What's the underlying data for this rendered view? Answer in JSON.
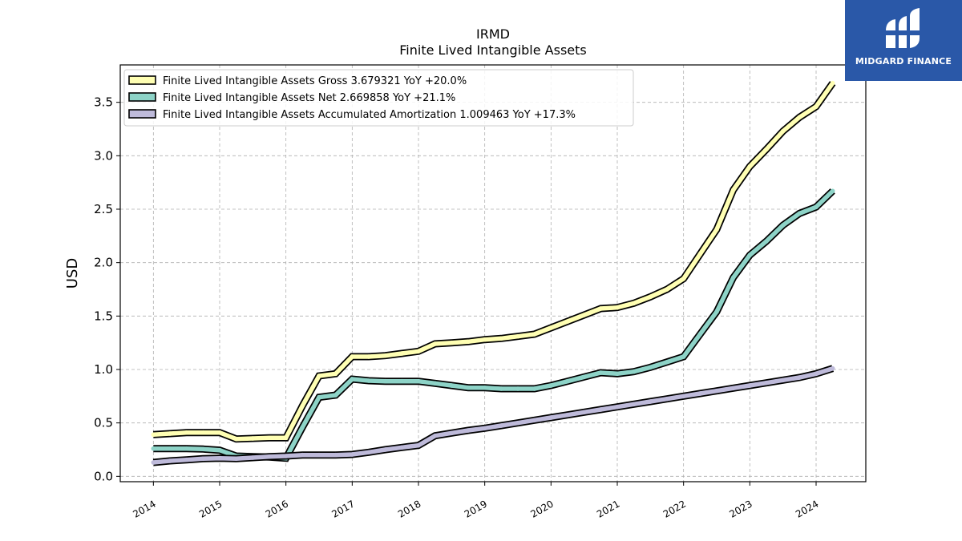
{
  "brand": {
    "name": "MIDGARD FINANCE",
    "icon": "midgard-logo-icon",
    "background": "#2a58a8"
  },
  "chart_data": {
    "type": "line",
    "title": "IRMD",
    "subtitle": "Finite Lived Intangible Assets",
    "xlabel": "",
    "ylabel": "USD",
    "xlim": [
      2013.5,
      2024.75
    ],
    "ylim": [
      -0.05,
      3.85
    ],
    "x_ticks": [
      2014,
      2015,
      2016,
      2017,
      2018,
      2019,
      2020,
      2021,
      2022,
      2023,
      2024
    ],
    "y_ticks": [
      0.0,
      0.5,
      1.0,
      1.5,
      2.0,
      2.5,
      3.0,
      3.5
    ],
    "y_tick_labels": [
      "0.0",
      "0.5",
      "1.0",
      "1.5",
      "2.0",
      "2.5",
      "3.0",
      "3.5"
    ],
    "grid": true,
    "legend_position": "top-left",
    "series": [
      {
        "name": "Finite Lived Intangible Assets Gross  3.679321 YoY +20.0%",
        "color": "#ffffb3",
        "x": [
          2014.0,
          2014.25,
          2014.5,
          2014.75,
          2015.0,
          2015.25,
          2015.5,
          2015.75,
          2016.0,
          2016.25,
          2016.5,
          2016.75,
          2017.0,
          2017.25,
          2017.5,
          2017.75,
          2018.0,
          2018.25,
          2018.5,
          2018.75,
          2019.0,
          2019.25,
          2019.5,
          2019.75,
          2020.0,
          2020.25,
          2020.5,
          2020.75,
          2021.0,
          2021.25,
          2021.5,
          2021.75,
          2022.0,
          2022.25,
          2022.5,
          2022.75,
          2023.0,
          2023.25,
          2023.5,
          2023.75,
          2024.0,
          2024.25
        ],
        "values": [
          0.39,
          0.4,
          0.41,
          0.41,
          0.41,
          0.35,
          0.355,
          0.36,
          0.36,
          0.66,
          0.94,
          0.96,
          1.12,
          1.12,
          1.13,
          1.15,
          1.17,
          1.24,
          1.25,
          1.26,
          1.28,
          1.29,
          1.31,
          1.33,
          1.39,
          1.45,
          1.51,
          1.57,
          1.58,
          1.62,
          1.68,
          1.75,
          1.85,
          2.08,
          2.31,
          2.68,
          2.9,
          3.06,
          3.23,
          3.36,
          3.46,
          3.68
        ]
      },
      {
        "name": "Finite Lived Intangible Assets Net  2.669858 YoY +21.1%",
        "color": "#8dd3c7",
        "x": [
          2014.0,
          2014.25,
          2014.5,
          2014.75,
          2015.0,
          2015.25,
          2015.5,
          2015.75,
          2016.0,
          2016.25,
          2016.5,
          2016.75,
          2017.0,
          2017.25,
          2017.5,
          2017.75,
          2018.0,
          2018.25,
          2018.5,
          2018.75,
          2019.0,
          2019.25,
          2019.5,
          2019.75,
          2020.0,
          2020.25,
          2020.5,
          2020.75,
          2021.0,
          2021.25,
          2021.5,
          2021.75,
          2022.0,
          2022.25,
          2022.5,
          2022.75,
          2023.0,
          2023.25,
          2023.5,
          2023.75,
          2024.0,
          2024.25
        ],
        "values": [
          0.26,
          0.26,
          0.26,
          0.255,
          0.245,
          0.19,
          0.185,
          0.18,
          0.17,
          0.46,
          0.74,
          0.76,
          0.91,
          0.895,
          0.89,
          0.89,
          0.89,
          0.87,
          0.85,
          0.83,
          0.83,
          0.82,
          0.82,
          0.82,
          0.85,
          0.89,
          0.93,
          0.97,
          0.96,
          0.98,
          1.02,
          1.07,
          1.12,
          1.33,
          1.54,
          1.86,
          2.07,
          2.2,
          2.35,
          2.46,
          2.52,
          2.67
        ]
      },
      {
        "name": "Finite Lived Intangible Assets Accumulated Amortization  1.009463 YoY +17.3%",
        "color": "#bebada",
        "x": [
          2014.0,
          2014.25,
          2014.5,
          2014.75,
          2015.0,
          2015.25,
          2015.5,
          2015.75,
          2016.0,
          2016.25,
          2016.5,
          2016.75,
          2017.0,
          2017.25,
          2017.5,
          2017.75,
          2018.0,
          2018.25,
          2018.5,
          2018.75,
          2019.0,
          2019.25,
          2019.5,
          2019.75,
          2020.0,
          2020.25,
          2020.5,
          2020.75,
          2021.0,
          2021.25,
          2021.5,
          2021.75,
          2022.0,
          2022.25,
          2022.5,
          2022.75,
          2023.0,
          2023.25,
          2023.5,
          2023.75,
          2024.0,
          2024.25
        ],
        "values": [
          0.13,
          0.145,
          0.155,
          0.165,
          0.17,
          0.165,
          0.175,
          0.185,
          0.19,
          0.2,
          0.2,
          0.2,
          0.205,
          0.225,
          0.25,
          0.27,
          0.29,
          0.38,
          0.405,
          0.43,
          0.45,
          0.475,
          0.5,
          0.525,
          0.55,
          0.575,
          0.6,
          0.625,
          0.65,
          0.675,
          0.7,
          0.725,
          0.75,
          0.775,
          0.8,
          0.825,
          0.85,
          0.875,
          0.9,
          0.925,
          0.96,
          1.01
        ]
      }
    ]
  }
}
